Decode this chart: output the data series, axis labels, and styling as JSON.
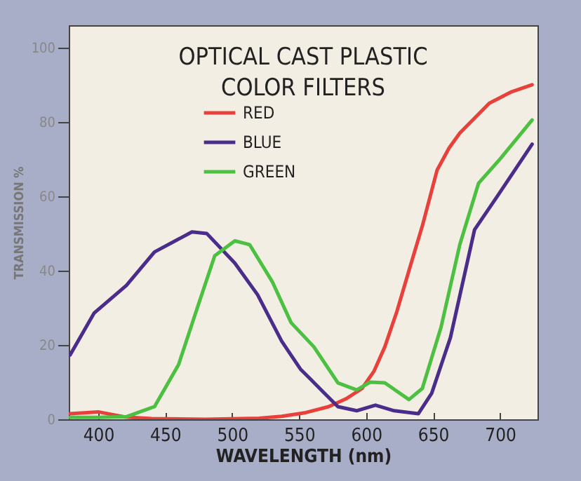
{
  "chart_data": {
    "type": "line",
    "title": "OPTICAL CAST PLASTIC\nCOLOR FILTERS",
    "xlabel": "WAVELENGTH (nm)",
    "ylabel": "TRANSMISSION %",
    "xlim": [
      378,
      728
    ],
    "ylim": [
      0,
      106
    ],
    "xticks": [
      400,
      450,
      500,
      550,
      600,
      650,
      700
    ],
    "yticks": [
      0,
      20,
      40,
      60,
      80,
      100
    ],
    "grid": false,
    "legend": "top",
    "line_style": "solid",
    "marker": "none",
    "series": [
      {
        "name": "RED",
        "color": "#e8403a",
        "x": [
          379,
          400,
          420,
          440,
          480,
          520,
          537,
          555,
          572,
          585,
          597,
          606,
          614,
          623,
          632,
          642,
          653,
          662,
          670,
          681,
          692,
          708,
          724
        ],
        "values": [
          1.5,
          2,
          0.6,
          0.2,
          0,
          0.3,
          0.8,
          1.8,
          3.4,
          5.5,
          8.3,
          13,
          19.5,
          29,
          40,
          52,
          67,
          73,
          77,
          81,
          85,
          88,
          90
        ]
      },
      {
        "name": "BLUE",
        "color": "#4a2d8a",
        "x": [
          379,
          397,
          421,
          442,
          470,
          481,
          502,
          519,
          537,
          551,
          558,
          569,
          579,
          593,
          607,
          621,
          639,
          649,
          663,
          681,
          698,
          724
        ],
        "values": [
          17.3,
          28.6,
          36,
          45,
          50.4,
          50,
          42,
          33.5,
          21,
          13.5,
          11,
          7,
          3.4,
          2.3,
          3.8,
          2.3,
          1.5,
          7,
          22,
          51,
          60,
          74
        ]
      },
      {
        "name": "GREEN",
        "color": "#4cc040",
        "x": [
          379,
          400,
          421,
          442,
          460,
          474,
          487,
          502,
          513,
          530,
          544,
          561,
          579,
          593,
          603,
          614,
          632,
          642,
          656,
          670,
          684,
          700,
          724
        ],
        "values": [
          0.5,
          0.5,
          0.7,
          3.4,
          14.7,
          30,
          44,
          48,
          47,
          37,
          26,
          19.5,
          9.8,
          7.9,
          10,
          9.8,
          5.3,
          8.3,
          24.8,
          47,
          63.5,
          70,
          80.5
        ]
      }
    ]
  }
}
